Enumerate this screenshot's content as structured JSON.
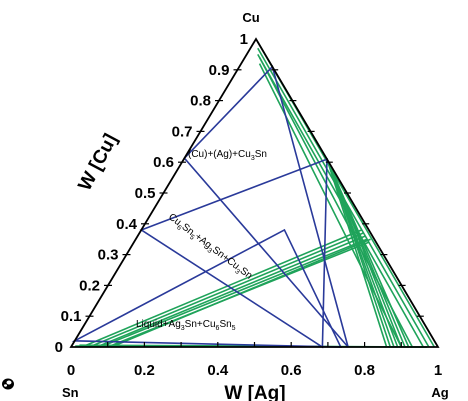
{
  "chart_data": {
    "type": "ternary",
    "corners": {
      "top": "Cu",
      "left": "Sn",
      "right": "Ag"
    },
    "xlabel": "W [Ag]",
    "ylabel": "W [Cu]",
    "x_ticks": [
      "0",
      "0.2",
      "0.4",
      "0.6",
      "0.8",
      "1"
    ],
    "y_ticks": [
      "0",
      "0.1",
      "0.2",
      "0.3",
      "0.4",
      "0.5",
      "0.6",
      "0.7",
      "0.8",
      "0.9",
      "1"
    ],
    "regions": [
      {
        "label": "(Cu)+(Ag)+Cu3Sn",
        "parts": [
          {
            "t": "(Cu)+(Ag)+Cu"
          },
          {
            "t": "3",
            "sub": true
          },
          {
            "t": "Sn"
          }
        ]
      },
      {
        "label": "Cu6Sn5+Ag3Sn+Cu3Sn",
        "parts": [
          {
            "t": "Cu"
          },
          {
            "t": "6",
            "sub": true
          },
          {
            "t": "Sn"
          },
          {
            "t": "5",
            "sub": true
          },
          {
            "t": "+Ag"
          },
          {
            "t": "3",
            "sub": true
          },
          {
            "t": "Sn+Cu"
          },
          {
            "t": "3",
            "sub": true
          },
          {
            "t": "Sn"
          }
        ]
      },
      {
        "label": "Liquid+Ag3Sn+Cu6Sn5",
        "parts": [
          {
            "t": "Liquid+Ag"
          },
          {
            "t": "3",
            "sub": true
          },
          {
            "t": "Sn+Cu"
          },
          {
            "t": "6",
            "sub": true
          },
          {
            "t": "Sn"
          },
          {
            "t": "5",
            "sub": true
          }
        ]
      }
    ],
    "three_phase_triangles": [
      [
        [
          0.0,
          0.613
        ],
        [
          0.09,
          0.91
        ],
        [
          0.755,
          0.0
        ]
      ],
      [
        [
          0.0,
          0.38
        ],
        [
          0.39,
          0.61
        ],
        [
          0.685,
          0.0
        ]
      ],
      [
        [
          0.0,
          0.02
        ],
        [
          0.39,
          0.38
        ],
        [
          0.735,
          0.0
        ]
      ]
    ],
    "tie_lines": [
      [
        [
          0.05,
          0.92
        ],
        [
          0.9,
          0.0
        ]
      ],
      [
        [
          0.04,
          0.94
        ],
        [
          0.93,
          0.0
        ]
      ],
      [
        [
          0.03,
          0.95
        ],
        [
          0.96,
          0.0
        ]
      ],
      [
        [
          0.02,
          0.97
        ],
        [
          0.975,
          0.0
        ]
      ],
      [
        [
          0.01,
          0.99
        ],
        [
          0.99,
          0.0
        ]
      ],
      [
        [
          0.39,
          0.61
        ],
        [
          0.86,
          0.0
        ]
      ],
      [
        [
          0.39,
          0.61
        ],
        [
          0.88,
          0.0
        ]
      ],
      [
        [
          0.39,
          0.61
        ],
        [
          0.89,
          0.0
        ]
      ],
      [
        [
          0.39,
          0.61
        ],
        [
          0.91,
          0.0
        ]
      ],
      [
        [
          0.39,
          0.61
        ],
        [
          0.92,
          0.0
        ]
      ],
      [
        [
          0.4,
          0.6
        ],
        [
          0.87,
          0.0
        ]
      ],
      [
        [
          0.4,
          0.6
        ],
        [
          0.9,
          0.0
        ]
      ],
      [
        [
          0.6,
          0.38
        ],
        [
          0.03,
          0.0
        ]
      ],
      [
        [
          0.61,
          0.37
        ],
        [
          0.05,
          0.0
        ]
      ],
      [
        [
          0.62,
          0.36
        ],
        [
          0.07,
          0.0
        ]
      ],
      [
        [
          0.63,
          0.35
        ],
        [
          0.08,
          0.0
        ]
      ],
      [
        [
          0.64,
          0.34
        ],
        [
          0.1,
          0.0
        ]
      ],
      [
        [
          0.64,
          0.35
        ],
        [
          0.11,
          0.0
        ]
      ],
      [
        [
          0.97,
          0.0
        ],
        [
          0.02,
          0.006
        ]
      ],
      [
        [
          0.97,
          0.0
        ],
        [
          0.01,
          0.003
        ]
      ]
    ],
    "colors": {
      "frame": "#000000",
      "three_phase": "#2a3a9a",
      "tie_line": "#1fa35a"
    }
  }
}
